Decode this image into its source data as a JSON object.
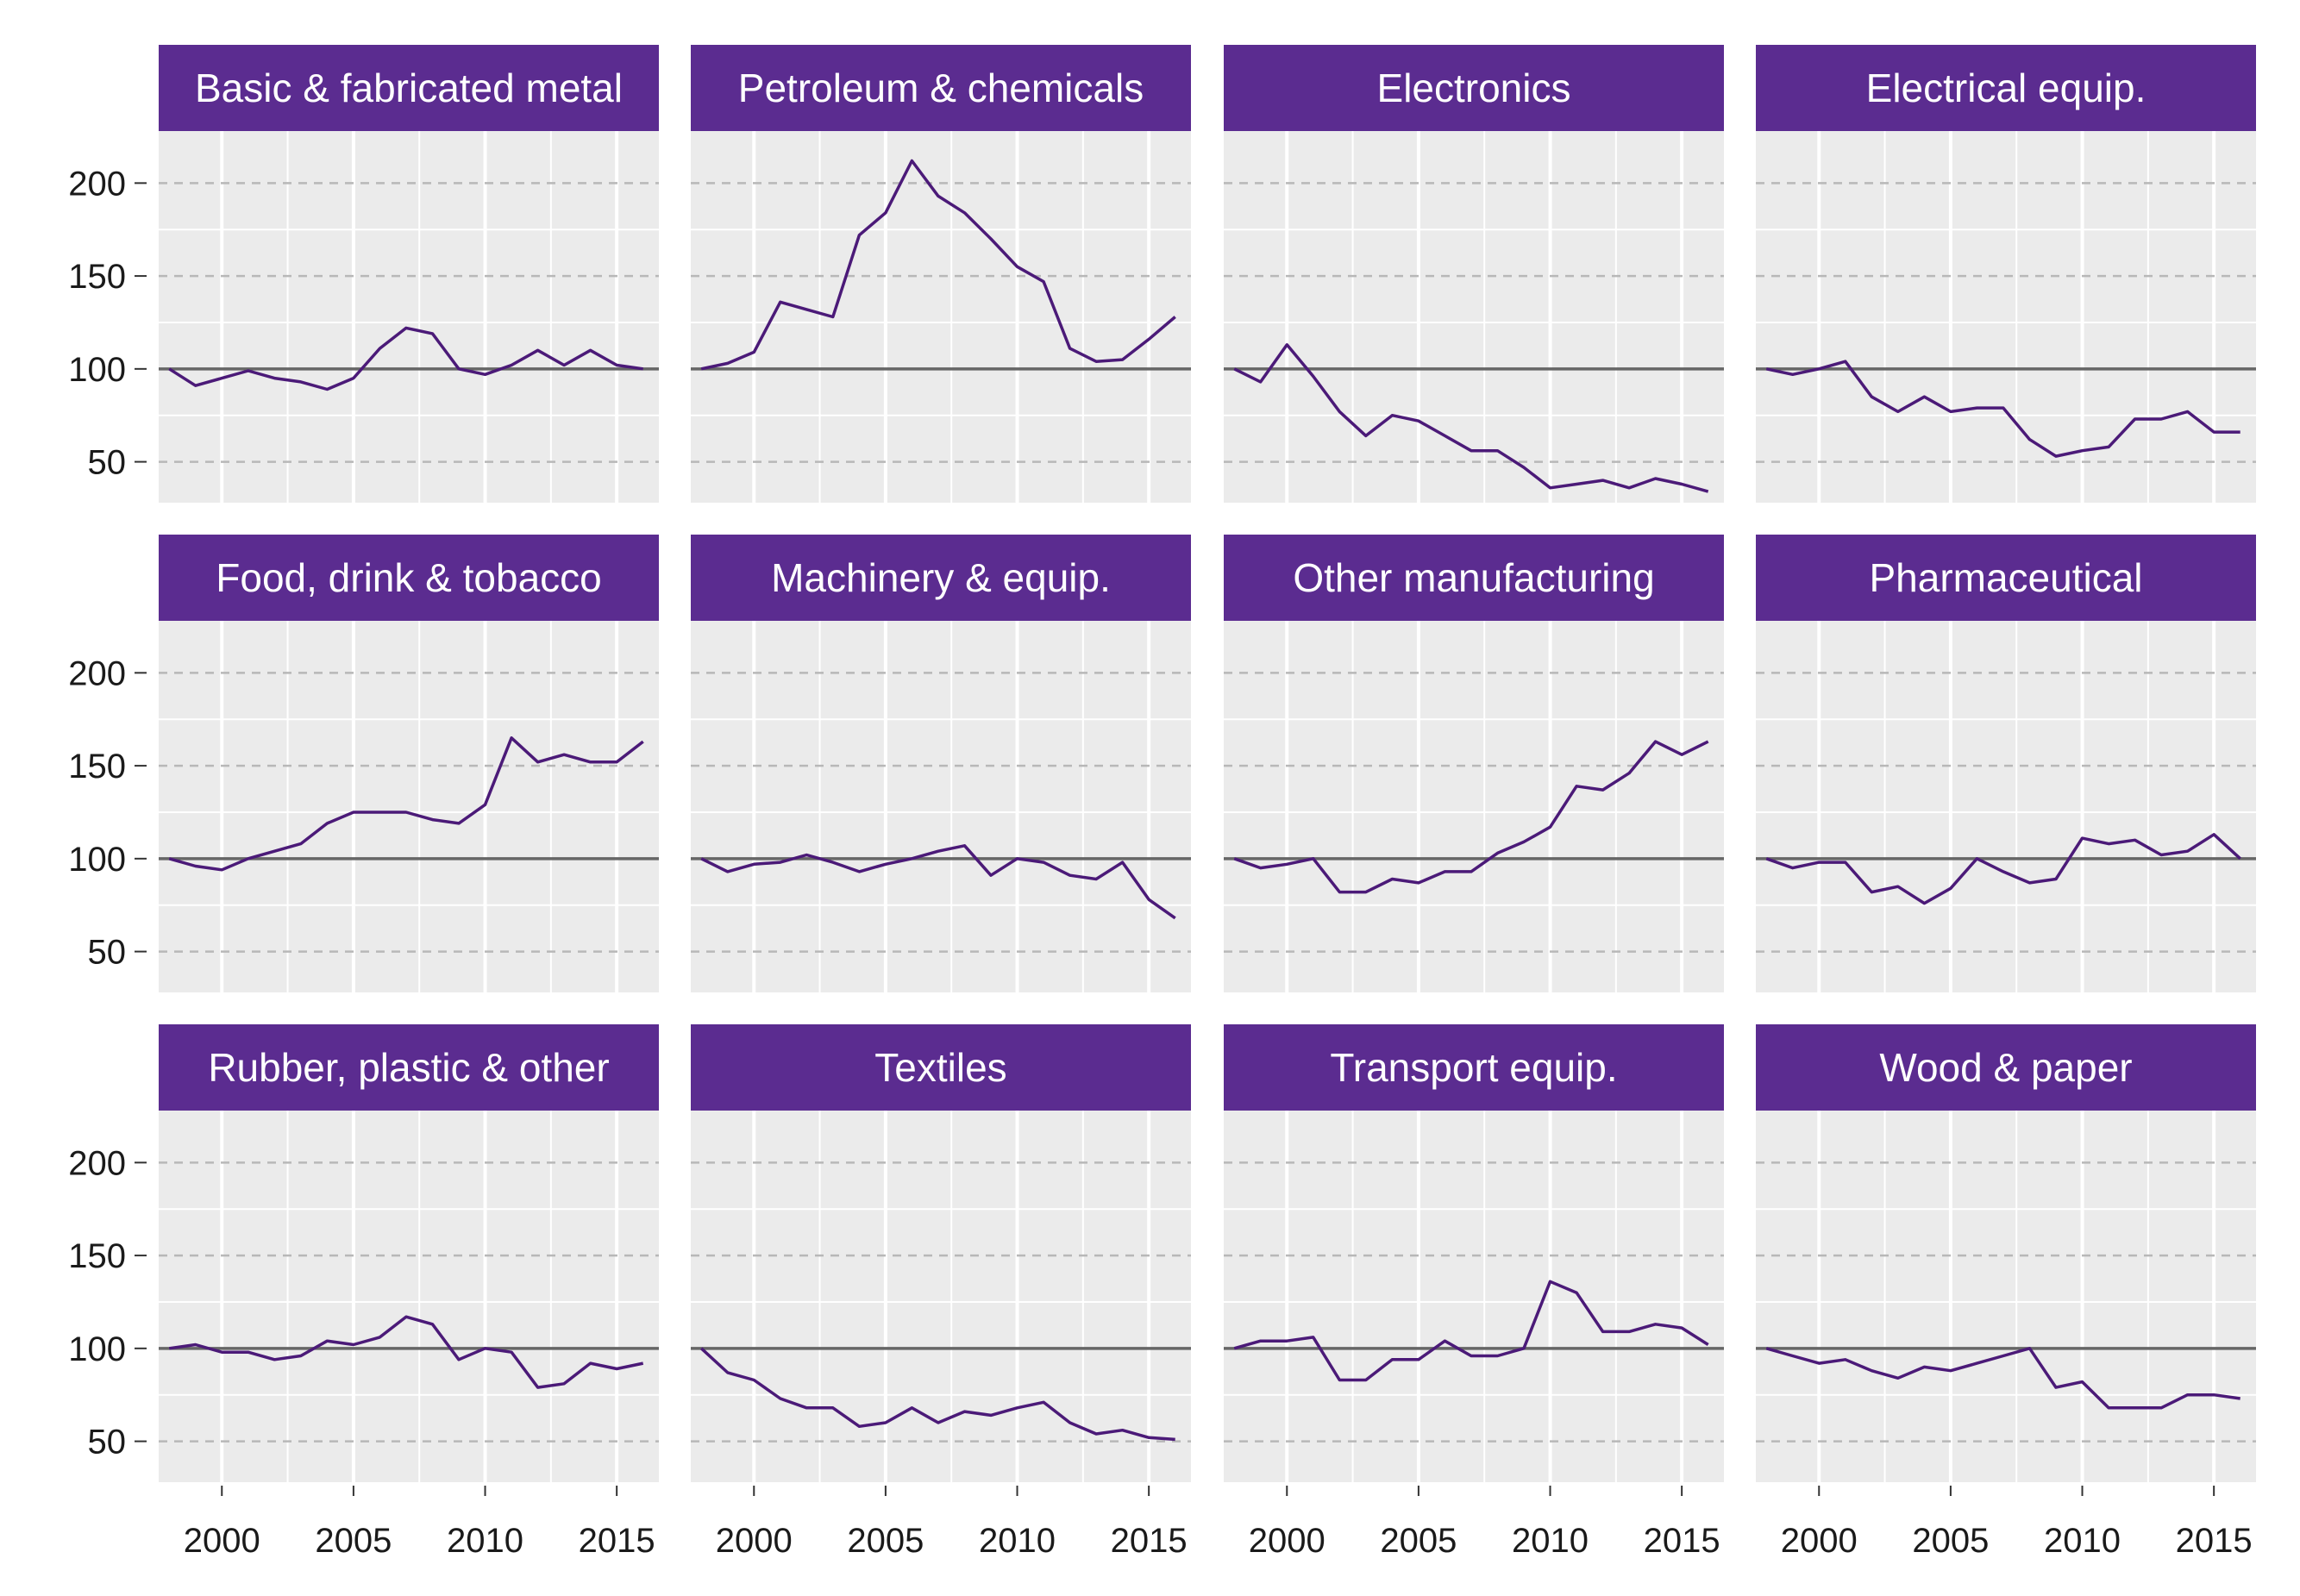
{
  "chart_data": {
    "type": "line",
    "layout": "facet-grid",
    "rows": 3,
    "columns": 4,
    "x_ticks": [
      2000,
      2005,
      2010,
      2015
    ],
    "y_ticks": [
      50,
      100,
      150,
      200
    ],
    "xlim": [
      1997.6,
      2016.6
    ],
    "ylim": [
      28,
      228
    ],
    "reference_line": 100,
    "grid": true,
    "colors": {
      "strip": "#5b2c90",
      "line": "#4b1a78",
      "panel": "#ebebeb",
      "grid": "#ffffff",
      "dashed_grid": "#b8b8b8",
      "reference": "#666666"
    },
    "x": [
      1998,
      1999,
      2000,
      2001,
      2002,
      2003,
      2004,
      2005,
      2006,
      2007,
      2008,
      2009,
      2010,
      2011,
      2012,
      2013,
      2014,
      2015,
      2016
    ],
    "panels": [
      {
        "title": "Basic & fabricated metal",
        "values": [
          100,
          91,
          95,
          99,
          95,
          93,
          89,
          95,
          111,
          122,
          119,
          100,
          97,
          102,
          110,
          102,
          110,
          102,
          100
        ]
      },
      {
        "title": "Petroleum & chemicals",
        "values": [
          100,
          103,
          109,
          136,
          132,
          128,
          172,
          184,
          212,
          193,
          184,
          170,
          155,
          147,
          111,
          104,
          105,
          116,
          128
        ]
      },
      {
        "title": "Electronics",
        "values": [
          100,
          93,
          113,
          96,
          77,
          64,
          75,
          72,
          64,
          56,
          56,
          47,
          36,
          38,
          40,
          36,
          41,
          38,
          34
        ]
      },
      {
        "title": "Electrical equip.",
        "values": [
          100,
          97,
          100,
          104,
          85,
          77,
          85,
          77,
          79,
          79,
          62,
          53,
          56,
          58,
          73,
          73,
          77,
          66,
          66
        ]
      },
      {
        "title": "Food, drink & tobacco",
        "values": [
          100,
          96,
          94,
          100,
          104,
          108,
          119,
          125,
          125,
          125,
          121,
          119,
          129,
          165,
          152,
          156,
          152,
          152,
          163
        ]
      },
      {
        "title": "Machinery & equip.",
        "values": [
          100,
          93,
          97,
          98,
          102,
          98,
          93,
          97,
          100,
          104,
          107,
          91,
          100,
          98,
          91,
          89,
          98,
          78,
          68
        ]
      },
      {
        "title": "Other manufacturing",
        "values": [
          100,
          95,
          97,
          100,
          82,
          82,
          89,
          87,
          93,
          93,
          103,
          109,
          117,
          139,
          137,
          146,
          163,
          156,
          163
        ]
      },
      {
        "title": "Pharmaceutical",
        "values": [
          100,
          95,
          98,
          98,
          82,
          85,
          76,
          84,
          100,
          93,
          87,
          89,
          111,
          108,
          110,
          102,
          104,
          113,
          100
        ]
      },
      {
        "title": "Rubber, plastic & other",
        "values": [
          100,
          102,
          98,
          98,
          94,
          96,
          104,
          102,
          106,
          117,
          113,
          94,
          100,
          98,
          79,
          81,
          92,
          89,
          92
        ]
      },
      {
        "title": "Textiles",
        "values": [
          100,
          87,
          83,
          73,
          68,
          68,
          58,
          60,
          68,
          60,
          66,
          64,
          68,
          71,
          60,
          54,
          56,
          52,
          51
        ]
      },
      {
        "title": "Transport equip.",
        "values": [
          100,
          104,
          104,
          106,
          83,
          83,
          94,
          94,
          104,
          96,
          96,
          100,
          136,
          130,
          109,
          109,
          113,
          111,
          102
        ]
      },
      {
        "title": "Wood & paper",
        "values": [
          100,
          96,
          92,
          94,
          88,
          84,
          90,
          88,
          92,
          96,
          100,
          79,
          82,
          68,
          68,
          68,
          75,
          75,
          73
        ]
      }
    ]
  }
}
